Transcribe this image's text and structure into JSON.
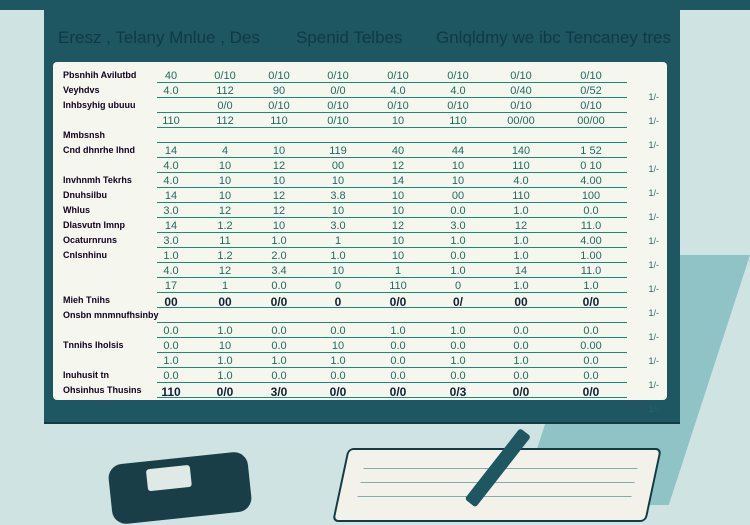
{
  "header": {
    "left_text": "Eresz , Telany Mnlue , Des",
    "mid_text": "Spenid Telbes",
    "right_text": "Gnlqldmy we ibc Tencaney tres"
  },
  "table": {
    "rows": [
      {
        "label": "Pbsnhih Avilutbd",
        "values": [
          "40",
          "0/10",
          "0/10",
          "0/10",
          "0/10",
          "0/10",
          "0/10",
          "0/10"
        ]
      },
      {
        "label": "Veyhdvs",
        "values": [
          "4.0",
          "112",
          "90",
          "0/0",
          "4.0",
          "4.0",
          "0/40",
          "0/52"
        ]
      },
      {
        "label": "Inhbsyhig ubuuu",
        "values": [
          "",
          "0/0",
          "0/10",
          "0/10",
          "0/10",
          "0/10",
          "0/10",
          "0/10"
        ]
      },
      {
        "label": "",
        "values": [
          "110",
          "112",
          "110",
          "0/10",
          "10",
          "110",
          "00/00",
          "00/00"
        ]
      },
      {
        "label": "Mmbsnsh",
        "values": [
          "",
          "",
          "",
          "",
          "",
          "",
          "",
          ""
        ]
      },
      {
        "label": "Cnd dhnrhe lhnd",
        "values": [
          "14",
          "4",
          "10",
          "119",
          "40",
          "44",
          "140",
          "1 52"
        ]
      },
      {
        "label": "",
        "values": [
          "4.0",
          "10",
          "12",
          "00",
          "12",
          "10",
          "110",
          "0 10"
        ]
      },
      {
        "label": "Invhnmh Tekrhs",
        "values": [
          "4.0",
          "10",
          "10",
          "10",
          "14",
          "10",
          "4.0",
          "4.00"
        ]
      },
      {
        "label": "Dnuhsilbu",
        "values": [
          "14",
          "10",
          "12",
          "3.8",
          "10",
          "00",
          "110",
          "100"
        ]
      },
      {
        "label": "Whlus",
        "values": [
          "3.0",
          "12",
          "12",
          "10",
          "10",
          "0.0",
          "1.0",
          "0.0"
        ]
      },
      {
        "label": "Dlasvutn Imnp",
        "values": [
          "14",
          "1.2",
          "10",
          "3.0",
          "12",
          "3.0",
          "12",
          "11.0"
        ]
      },
      {
        "label": "Ocaturnruns",
        "values": [
          "3.0",
          "11",
          "1.0",
          "1",
          "10",
          "1.0",
          "1.0",
          "4.00"
        ]
      },
      {
        "label": "Cnlsnhinu",
        "values": [
          "1.0",
          "1.2",
          "2.0",
          "1.0",
          "10",
          "0.0",
          "1.0",
          "1.00"
        ]
      },
      {
        "label": "",
        "values": [
          "4.0",
          "12",
          "3.4",
          "10",
          "1",
          "1.0",
          "14",
          "11.0"
        ]
      },
      {
        "label": "",
        "values": [
          "17",
          "1",
          "0.0",
          "0",
          "110",
          "0",
          "1.0",
          "1.0"
        ]
      },
      {
        "label": "Mieh Tnihs",
        "values": [
          "00",
          "00",
          "0/0",
          "0",
          "0/0",
          "0/",
          "00",
          "0/0"
        ]
      },
      {
        "label": "Onsbn mnmnufhsinby",
        "values": [
          "",
          "",
          "",
          "",
          "",
          "",
          "",
          ""
        ]
      },
      {
        "label": "",
        "values": [
          "0.0",
          "1.0",
          "0.0",
          "0.0",
          "1.0",
          "1.0",
          "0.0",
          "0.0"
        ]
      },
      {
        "label": "Tnnihs Iholsis",
        "values": [
          "0.0",
          "10",
          "0.0",
          "10",
          "0.0",
          "0.0",
          "0.0",
          "0.00"
        ]
      },
      {
        "label": "",
        "values": [
          "1.0",
          "1.0",
          "1.0",
          "1.0",
          "0.0",
          "1.0",
          "1.0",
          "0.0"
        ]
      },
      {
        "label": "Inuhusit tn",
        "values": [
          "0.0",
          "1.0",
          "0.0",
          "0.0",
          "0.0",
          "0.0",
          "0.0",
          "0.0"
        ]
      },
      {
        "label": "Ohsinhus Thusins",
        "values": [
          "110",
          "0/0",
          "3/0",
          "0/0",
          "0/0",
          "0/3",
          "0/0",
          "0/0"
        ]
      }
    ]
  },
  "side_ticks": [
    "1/-",
    "1/-",
    "1/-",
    "1/-",
    "1/-",
    "1/-",
    "1/-",
    "1/-",
    "1/-",
    "1/-",
    "1/-",
    "1/-",
    "1/-",
    "1/-"
  ]
}
